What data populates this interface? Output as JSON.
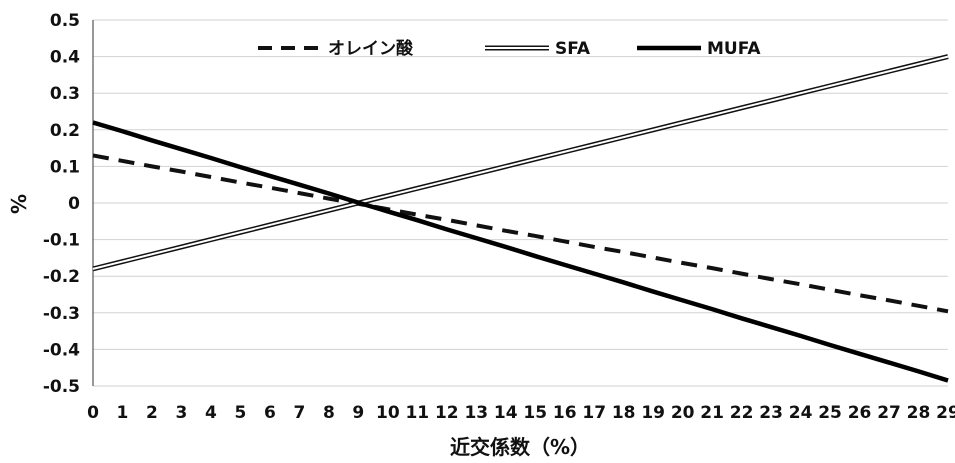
{
  "chart_data": {
    "type": "line",
    "xlabel": "近交係数（%）",
    "ylabel": "%",
    "x": [
      0,
      1,
      2,
      3,
      4,
      5,
      6,
      7,
      8,
      9,
      10,
      11,
      12,
      13,
      14,
      15,
      16,
      17,
      18,
      19,
      20,
      21,
      22,
      23,
      24,
      25,
      26,
      27,
      28,
      29
    ],
    "xlim": [
      0,
      29
    ],
    "ylim": [
      -0.5,
      0.5
    ],
    "yticks": [
      0.5,
      0.4,
      0.3,
      0.2,
      0.1,
      0,
      -0.1,
      -0.2,
      -0.3,
      -0.4,
      -0.5
    ],
    "ytick_labels": [
      "0.5",
      "0.4",
      "0.3",
      "0.2",
      "0.1",
      "0",
      "-0.1",
      "-0.2",
      "-0.3",
      "-0.4",
      "-0.5"
    ],
    "grid": true,
    "legend_position": "top",
    "series": [
      {
        "name": "オレイン酸",
        "style": "dashed",
        "color": "#111111",
        "values": [
          0.13,
          0.115,
          0.1,
          0.086,
          0.071,
          0.056,
          0.042,
          0.027,
          0.012,
          -0.002,
          -0.017,
          -0.032,
          -0.046,
          -0.061,
          -0.076,
          -0.09,
          -0.105,
          -0.12,
          -0.134,
          -0.149,
          -0.164,
          -0.178,
          -0.193,
          -0.208,
          -0.222,
          -0.237,
          -0.252,
          -0.266,
          -0.281,
          -0.296
        ]
      },
      {
        "name": "SFA",
        "style": "double",
        "color": "#111111",
        "values": [
          -0.18,
          -0.16,
          -0.14,
          -0.12,
          -0.1,
          -0.08,
          -0.06,
          -0.04,
          -0.02,
          0,
          0.02,
          0.04,
          0.06,
          0.08,
          0.1,
          0.12,
          0.14,
          0.16,
          0.18,
          0.2,
          0.22,
          0.24,
          0.26,
          0.28,
          0.3,
          0.32,
          0.34,
          0.36,
          0.38,
          0.4
        ]
      },
      {
        "name": "MUFA",
        "style": "solid-thick",
        "color": "#000000",
        "values": [
          0.22,
          0.196,
          0.171,
          0.147,
          0.123,
          0.098,
          0.074,
          0.05,
          0.026,
          0.001,
          -0.023,
          -0.047,
          -0.072,
          -0.096,
          -0.12,
          -0.145,
          -0.169,
          -0.193,
          -0.217,
          -0.242,
          -0.266,
          -0.29,
          -0.315,
          -0.339,
          -0.363,
          -0.388,
          -0.412,
          -0.436,
          -0.46,
          -0.485
        ]
      }
    ]
  }
}
